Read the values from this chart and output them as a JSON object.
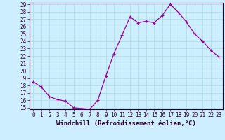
{
  "x": [
    0,
    1,
    2,
    3,
    4,
    5,
    6,
    7,
    8,
    9,
    10,
    11,
    12,
    13,
    14,
    15,
    16,
    17,
    18,
    19,
    20,
    21,
    22,
    23
  ],
  "y": [
    18.5,
    17.8,
    16.5,
    16.1,
    15.9,
    15.0,
    14.9,
    14.8,
    16.0,
    19.3,
    22.3,
    24.8,
    27.3,
    26.5,
    26.7,
    26.5,
    27.5,
    29.0,
    27.9,
    26.6,
    25.0,
    24.0,
    22.8,
    21.9
  ],
  "line_color": "#990099",
  "marker": "+",
  "marker_size": 3,
  "bg_color": "#cceeff",
  "grid_color": "#aadddd",
  "xlabel": "Windchill (Refroidissement éolien,°C)",
  "ylim": [
    15,
    29
  ],
  "xlim_min": -0.5,
  "xlim_max": 23.5,
  "yticks": [
    15,
    16,
    17,
    18,
    19,
    20,
    21,
    22,
    23,
    24,
    25,
    26,
    27,
    28,
    29
  ],
  "xticks": [
    0,
    1,
    2,
    3,
    4,
    5,
    6,
    7,
    8,
    9,
    10,
    11,
    12,
    13,
    14,
    15,
    16,
    17,
    18,
    19,
    20,
    21,
    22,
    23
  ],
  "xtick_labels": [
    "0",
    "1",
    "2",
    "3",
    "4",
    "5",
    "6",
    "7",
    "8",
    "9",
    "10",
    "11",
    "12",
    "13",
    "14",
    "15",
    "16",
    "17",
    "18",
    "19",
    "20",
    "21",
    "22",
    "23"
  ],
  "tick_font_size": 5.5,
  "xlabel_font_size": 6.5,
  "line_width": 0.9,
  "marker_edge_width": 0.9,
  "spine_color": "#330033",
  "tick_color": "#330033"
}
